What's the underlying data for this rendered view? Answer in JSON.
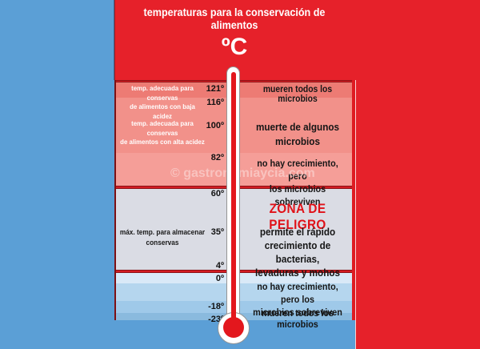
{
  "title": "temperaturas para la conservación de alimentos",
  "unit": "ºC",
  "watermark": "© gastronomiaycia.com",
  "colors": {
    "background_red": "#e6212a",
    "panel_blue": "#5b9fd6",
    "band_sterilization": "#ed7b74",
    "band_hot": "#f2918a",
    "band_warm": "#f59e98",
    "band_danger_gray": "#dadce4",
    "band_cool_lightest": "#d9e9f7",
    "band_cool_light": "#b5d6ee",
    "band_cool_medium": "#9fc9e9",
    "band_cool_deep": "#8abade",
    "separator_red": "#d41d23",
    "danger_text_red": "#e01118",
    "thermometer_liquid_red": "#e3171d"
  },
  "ticks": [
    "121º",
    "116º",
    "100º",
    "82º",
    "60º",
    "35º",
    "4º",
    "0º",
    "-18º",
    "-23º"
  ],
  "left_notes": [
    "temp. adecuada para conservas\nde alimentos con baja acidez",
    "temp. adecuada para conservas\nde alimentos con alta acidez",
    "máx. temp. para almacenar\nconservas"
  ],
  "zones": [
    "mueren todos los microbios",
    "muerte de algunos\nmicrobios",
    "no hay crecimiento, pero\nlos microbios sobreviven",
    "ZONA DE PELIGRO",
    "permite el rápido\ncrecimiento  de bacterias,\nlevaduras y mohos",
    "no hay crecimiento, pero los\nmicrobios sobreviven",
    "mueren todos los microbios"
  ]
}
